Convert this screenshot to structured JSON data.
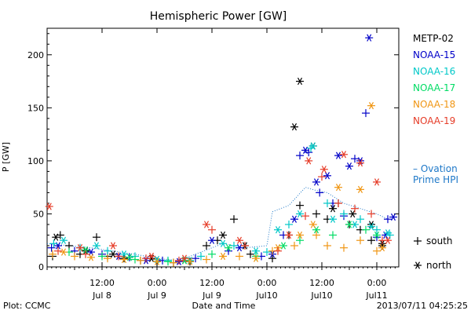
{
  "chart_data": {
    "type": "scatter",
    "title": "Hemispheric Power [GW]",
    "xlabel": "Date and Time",
    "ylabel": "P [GW]",
    "ylim": [
      0,
      225
    ],
    "xlim": [
      0,
      3.2
    ],
    "x_units": "days since 2013-07-08 00:00",
    "y_ticks": [
      0,
      50,
      100,
      150,
      200
    ],
    "x_ticks": [
      {
        "x": 0.5,
        "top": "12:00",
        "bottom": "Jul 8"
      },
      {
        "x": 1.0,
        "top": "0:00",
        "bottom": "Jul 9"
      },
      {
        "x": 1.5,
        "top": "12:00",
        "bottom": "Jul 9"
      },
      {
        "x": 2.0,
        "top": "0:00",
        "bottom": "Jul10"
      },
      {
        "x": 2.5,
        "top": "12:00",
        "bottom": "Jul10"
      },
      {
        "x": 3.0,
        "top": "0:00",
        "bottom": "Jul11"
      }
    ],
    "series": [
      {
        "name": "METP-02",
        "color": "#000000",
        "south": [
          [
            0.05,
            10
          ],
          [
            0.12,
            30
          ],
          [
            0.2,
            20
          ],
          [
            0.3,
            12
          ],
          [
            0.45,
            28
          ],
          [
            0.55,
            10
          ],
          [
            0.7,
            8
          ],
          [
            0.85,
            6
          ],
          [
            1.0,
            5
          ],
          [
            1.15,
            4
          ],
          [
            1.3,
            5
          ],
          [
            1.45,
            20
          ],
          [
            1.55,
            25
          ],
          [
            1.7,
            45
          ],
          [
            1.85,
            12
          ],
          [
            2.05,
            8
          ],
          [
            2.2,
            30
          ],
          [
            2.3,
            58
          ],
          [
            2.45,
            50
          ],
          [
            2.55,
            45
          ],
          [
            2.65,
            60
          ],
          [
            2.75,
            40
          ],
          [
            2.85,
            35
          ],
          [
            2.95,
            25
          ],
          [
            3.05,
            20
          ]
        ],
        "north": [
          [
            0.08,
            28
          ],
          [
            0.35,
            15
          ],
          [
            0.6,
            12
          ],
          [
            0.95,
            8
          ],
          [
            1.25,
            6
          ],
          [
            1.6,
            30
          ],
          [
            1.8,
            20
          ],
          [
            2.25,
            132
          ],
          [
            2.3,
            175
          ],
          [
            2.42,
            114
          ],
          [
            2.6,
            55
          ],
          [
            2.78,
            50
          ],
          [
            2.95,
            40
          ],
          [
            3.05,
            22
          ]
        ]
      },
      {
        "name": "NOAA-15",
        "color": "#0000c8",
        "south": [
          [
            0.04,
            18
          ],
          [
            0.25,
            15
          ],
          [
            0.5,
            12
          ],
          [
            0.75,
            9
          ],
          [
            1.05,
            6
          ],
          [
            1.35,
            8
          ],
          [
            1.65,
            15
          ],
          [
            1.95,
            10
          ],
          [
            2.15,
            30
          ],
          [
            2.3,
            105
          ],
          [
            2.38,
            108
          ],
          [
            2.48,
            70
          ],
          [
            2.6,
            60
          ],
          [
            2.7,
            48
          ],
          [
            2.8,
            102
          ],
          [
            2.9,
            145
          ],
          [
            3.0,
            28
          ],
          [
            3.1,
            45
          ]
        ],
        "north": [
          [
            0.1,
            20
          ],
          [
            0.4,
            14
          ],
          [
            0.65,
            10
          ],
          [
            0.9,
            6
          ],
          [
            1.2,
            5
          ],
          [
            1.5,
            25
          ],
          [
            1.75,
            18
          ],
          [
            2.05,
            12
          ],
          [
            2.25,
            45
          ],
          [
            2.35,
            110
          ],
          [
            2.45,
            80
          ],
          [
            2.55,
            86
          ],
          [
            2.65,
            105
          ],
          [
            2.75,
            95
          ],
          [
            2.85,
            100
          ],
          [
            2.93,
            216
          ],
          [
            3.08,
            30
          ],
          [
            3.15,
            47
          ]
        ]
      },
      {
        "name": "NOAA-16",
        "color": "#00c8c8",
        "south": [
          [
            0.06,
            22
          ],
          [
            0.3,
            18
          ],
          [
            0.55,
            15
          ],
          [
            0.8,
            10
          ],
          [
            1.1,
            6
          ],
          [
            1.4,
            10
          ],
          [
            1.7,
            20
          ],
          [
            2.0,
            14
          ],
          [
            2.2,
            40
          ],
          [
            2.4,
            112
          ],
          [
            2.55,
            60
          ],
          [
            2.7,
            50
          ],
          [
            2.85,
            45
          ],
          [
            3.0,
            35
          ],
          [
            3.12,
            30
          ]
        ],
        "north": [
          [
            0.15,
            25
          ],
          [
            0.45,
            20
          ],
          [
            0.7,
            12
          ],
          [
            1.0,
            7
          ],
          [
            1.3,
            6
          ],
          [
            1.6,
            22
          ],
          [
            1.9,
            15
          ],
          [
            2.1,
            35
          ],
          [
            2.3,
            50
          ],
          [
            2.42,
            114
          ],
          [
            2.6,
            45
          ],
          [
            2.8,
            40
          ],
          [
            2.95,
            38
          ],
          [
            3.1,
            32
          ]
        ]
      },
      {
        "name": "NOAA-17",
        "color": "#00dc64",
        "south": [
          [
            0.2,
            14
          ],
          [
            0.5,
            10
          ],
          [
            0.8,
            7
          ],
          [
            1.1,
            5
          ],
          [
            1.5,
            12
          ],
          [
            1.9,
            10
          ],
          [
            2.3,
            25
          ],
          [
            2.6,
            30
          ],
          [
            2.9,
            35
          ]
        ],
        "north": [
          [
            0.35,
            16
          ],
          [
            0.75,
            9
          ],
          [
            1.25,
            6
          ],
          [
            1.65,
            18
          ],
          [
            2.15,
            20
          ],
          [
            2.45,
            35
          ],
          [
            2.75,
            40
          ],
          [
            3.0,
            30
          ]
        ]
      },
      {
        "name": "NOAA-18",
        "color": "#f09614",
        "south": [
          [
            0.05,
            12
          ],
          [
            0.25,
            10
          ],
          [
            0.55,
            8
          ],
          [
            0.85,
            6
          ],
          [
            1.15,
            4
          ],
          [
            1.45,
            7
          ],
          [
            1.75,
            10
          ],
          [
            2.05,
            15
          ],
          [
            2.25,
            20
          ],
          [
            2.45,
            30
          ],
          [
            2.55,
            20
          ],
          [
            2.7,
            18
          ],
          [
            2.85,
            25
          ],
          [
            3.0,
            15
          ]
        ],
        "north": [
          [
            0.15,
            14
          ],
          [
            0.4,
            9
          ],
          [
            0.7,
            7
          ],
          [
            1.0,
            5
          ],
          [
            1.3,
            5
          ],
          [
            1.6,
            10
          ],
          [
            1.9,
            8
          ],
          [
            2.1,
            18
          ],
          [
            2.3,
            30
          ],
          [
            2.42,
            40
          ],
          [
            2.65,
            75
          ],
          [
            2.85,
            73
          ],
          [
            2.95,
            152
          ],
          [
            3.05,
            18
          ]
        ]
      },
      {
        "name": "NOAA-19",
        "color": "#e63c28",
        "south": [
          [
            0.1,
            15
          ],
          [
            0.35,
            12
          ],
          [
            0.65,
            10
          ],
          [
            0.9,
            8
          ],
          [
            1.2,
            6
          ],
          [
            1.5,
            35
          ],
          [
            1.8,
            20
          ],
          [
            2.1,
            15
          ],
          [
            2.35,
            48
          ],
          [
            2.5,
            85
          ],
          [
            2.65,
            60
          ],
          [
            2.8,
            55
          ],
          [
            2.95,
            50
          ],
          [
            3.05,
            25
          ]
        ],
        "north": [
          [
            0.02,
            57
          ],
          [
            0.3,
            18
          ],
          [
            0.6,
            20
          ],
          [
            0.95,
            10
          ],
          [
            1.25,
            8
          ],
          [
            1.45,
            40
          ],
          [
            1.75,
            25
          ],
          [
            2.2,
            30
          ],
          [
            2.38,
            100
          ],
          [
            2.52,
            92
          ],
          [
            2.7,
            106
          ],
          [
            2.85,
            98
          ],
          [
            3.0,
            80
          ],
          [
            3.1,
            25
          ]
        ]
      }
    ],
    "ovation": {
      "name": "– Ovation Prime HPI",
      "color": "#1e78c8",
      "points": [
        [
          0,
          22
        ],
        [
          0.2,
          20
        ],
        [
          0.4,
          18
        ],
        [
          0.6,
          15
        ],
        [
          0.8,
          12
        ],
        [
          1.0,
          8
        ],
        [
          1.2,
          6
        ],
        [
          1.4,
          14
        ],
        [
          1.6,
          22
        ],
        [
          1.8,
          18
        ],
        [
          2.0,
          20
        ],
        [
          2.05,
          52
        ],
        [
          2.2,
          58
        ],
        [
          2.35,
          75
        ],
        [
          2.45,
          72
        ],
        [
          2.55,
          70
        ],
        [
          2.7,
          60
        ],
        [
          2.85,
          55
        ],
        [
          3.0,
          50
        ],
        [
          3.1,
          45
        ]
      ]
    },
    "markers_legend": {
      "south_label": "south",
      "north_label": "north"
    },
    "footer_left": "Plot: CCMC",
    "footer_right": "2013/07/11 04:25:25"
  }
}
